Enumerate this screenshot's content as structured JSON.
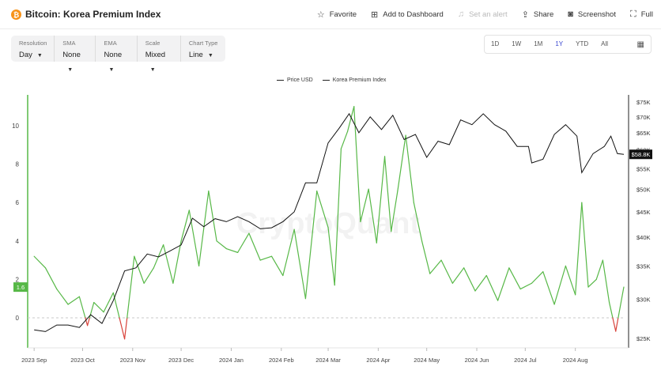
{
  "header": {
    "coin_icon": "bitcoin-icon",
    "title": "Bitcoin: Korea Premium Index",
    "actions": [
      {
        "label": "Favorite",
        "icon": "star-icon",
        "glyph": "☆",
        "enabled": true
      },
      {
        "label": "Add to Dashboard",
        "icon": "dashboard-add-icon",
        "glyph": "⊞",
        "enabled": true
      },
      {
        "label": "Set an alert",
        "icon": "bell-icon",
        "glyph": "♫",
        "enabled": false
      },
      {
        "label": "Share",
        "icon": "share-icon",
        "glyph": "⇪",
        "enabled": true
      },
      {
        "label": "Screenshot",
        "icon": "camera-icon",
        "glyph": "◙",
        "enabled": true
      },
      {
        "label": "Full",
        "icon": "fullscreen-icon",
        "glyph": "⛶",
        "enabled": true
      }
    ]
  },
  "controls": [
    {
      "label": "Resolution",
      "value": "Day"
    },
    {
      "label": "SMA",
      "value": "None"
    },
    {
      "label": "EMA",
      "value": "None"
    },
    {
      "label": "Scale",
      "value": "Mixed"
    },
    {
      "label": "Chart Type",
      "value": "Line"
    }
  ],
  "ranges": {
    "options": [
      "1D",
      "1W",
      "1M",
      "1Y",
      "YTD",
      "All"
    ],
    "active": "1Y",
    "calendar_icon": "calendar-icon"
  },
  "watermark": "CryptoQuant",
  "chart_data": {
    "type": "line",
    "legend": {
      "position": "top-center",
      "entries": [
        "Price USD",
        "Korea Premium Index"
      ]
    },
    "x_ticks": [
      "2023 Sep",
      "2023 Oct",
      "2023 Nov",
      "2023 Dec",
      "2024 Jan",
      "2024 Feb",
      "2024 Mar",
      "2024 Apr",
      "2024 May",
      "2024 Jun",
      "2024 Jul",
      "2024 Aug"
    ],
    "left_axis": {
      "ticks": [
        "0",
        "2",
        "4",
        "6",
        "8",
        "10"
      ],
      "range": [
        -1.5,
        12
      ],
      "current_label": "1.6",
      "current_value": 1.6,
      "color": "#57b847"
    },
    "right_axis": {
      "scale": "log",
      "ticks": [
        "$25K",
        "$30K",
        "$35K",
        "$40K",
        "$45K",
        "$50K",
        "$55K",
        "$60K",
        "$65K",
        "$70K",
        "$75K"
      ],
      "current_label": "$58.8K",
      "current_value": 58.8
    },
    "zero_line": {
      "value": 0,
      "style": "dashed"
    },
    "colors": {
      "price": "#111111",
      "premium_positive": "#57b847",
      "premium_negative": "#d8423a"
    },
    "series": [
      {
        "name": "Price USD",
        "axis": "right",
        "x": [
          "2023-09-01",
          "2023-09-08",
          "2023-09-15",
          "2023-09-22",
          "2023-09-29",
          "2023-10-06",
          "2023-10-13",
          "2023-10-20",
          "2023-10-27",
          "2023-11-03",
          "2023-11-10",
          "2023-11-17",
          "2023-11-24",
          "2023-12-01",
          "2023-12-08",
          "2023-12-15",
          "2023-12-22",
          "2023-12-29",
          "2024-01-05",
          "2024-01-12",
          "2024-01-19",
          "2024-01-26",
          "2024-02-02",
          "2024-02-09",
          "2024-02-16",
          "2024-02-23",
          "2024-03-01",
          "2024-03-08",
          "2024-03-14",
          "2024-03-20",
          "2024-03-27",
          "2024-04-03",
          "2024-04-10",
          "2024-04-17",
          "2024-04-24",
          "2024-05-01",
          "2024-05-08",
          "2024-05-15",
          "2024-05-22",
          "2024-05-29",
          "2024-06-05",
          "2024-06-12",
          "2024-06-19",
          "2024-06-26",
          "2024-07-03",
          "2024-07-05",
          "2024-07-12",
          "2024-07-19",
          "2024-07-26",
          "2024-08-02",
          "2024-08-05",
          "2024-08-12",
          "2024-08-19",
          "2024-08-23",
          "2024-08-27",
          "2024-08-31"
        ],
        "values": [
          26.0,
          25.8,
          26.6,
          26.6,
          26.3,
          27.9,
          26.8,
          29.8,
          34.2,
          34.7,
          37.0,
          36.5,
          37.5,
          38.6,
          43.7,
          42.0,
          43.6,
          43.0,
          44.0,
          43.0,
          41.6,
          41.8,
          43.0,
          45.0,
          51.5,
          51.5,
          62.0,
          66.5,
          71.0,
          65.0,
          70.0,
          66.0,
          70.5,
          63.0,
          64.5,
          58.0,
          62.5,
          61.5,
          69.0,
          67.5,
          71.0,
          67.5,
          65.5,
          61.0,
          61.0,
          56.5,
          57.5,
          64.5,
          67.5,
          64.0,
          54.0,
          59.0,
          61.0,
          64.0,
          59.0,
          58.8
        ]
      },
      {
        "name": "Korea Premium Index",
        "axis": "left",
        "x": [
          "2023-09-01",
          "2023-09-08",
          "2023-09-15",
          "2023-09-22",
          "2023-09-29",
          "2023-10-04",
          "2023-10-08",
          "2023-10-14",
          "2023-10-20",
          "2023-10-27",
          "2023-11-02",
          "2023-11-08",
          "2023-11-14",
          "2023-11-20",
          "2023-11-26",
          "2023-12-01",
          "2023-12-06",
          "2023-12-12",
          "2023-12-18",
          "2023-12-23",
          "2023-12-29",
          "2024-01-05",
          "2024-01-12",
          "2024-01-19",
          "2024-01-26",
          "2024-02-02",
          "2024-02-09",
          "2024-02-16",
          "2024-02-23",
          "2024-03-01",
          "2024-03-05",
          "2024-03-09",
          "2024-03-13",
          "2024-03-17",
          "2024-03-21",
          "2024-03-26",
          "2024-03-31",
          "2024-04-05",
          "2024-04-09",
          "2024-04-13",
          "2024-04-18",
          "2024-04-23",
          "2024-04-28",
          "2024-05-03",
          "2024-05-10",
          "2024-05-17",
          "2024-05-24",
          "2024-05-31",
          "2024-06-07",
          "2024-06-14",
          "2024-06-21",
          "2024-06-28",
          "2024-07-05",
          "2024-07-12",
          "2024-07-19",
          "2024-07-26",
          "2024-08-01",
          "2024-08-05",
          "2024-08-09",
          "2024-08-14",
          "2024-08-18",
          "2024-08-22",
          "2024-08-26",
          "2024-08-31"
        ],
        "values": [
          3.2,
          2.6,
          1.5,
          0.7,
          1.1,
          -0.4,
          0.8,
          0.3,
          1.3,
          -1.1,
          3.2,
          1.8,
          2.6,
          3.8,
          1.8,
          4.0,
          5.6,
          2.7,
          6.6,
          4.0,
          3.6,
          3.4,
          4.4,
          3.0,
          3.2,
          2.2,
          4.6,
          1.0,
          6.6,
          4.7,
          1.7,
          8.8,
          9.7,
          11.0,
          5.0,
          6.7,
          3.9,
          8.4,
          4.5,
          6.6,
          9.5,
          6.0,
          4.0,
          2.3,
          3.0,
          1.8,
          2.6,
          1.4,
          2.2,
          0.9,
          2.6,
          1.5,
          1.8,
          2.4,
          0.7,
          2.7,
          1.2,
          6.0,
          1.6,
          2.0,
          3.0,
          0.8,
          -0.7,
          1.6
        ]
      }
    ]
  }
}
